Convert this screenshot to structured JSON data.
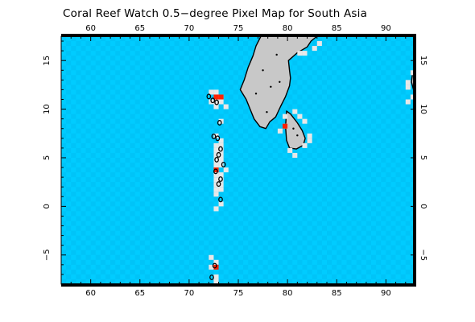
{
  "title": "Coral Reef Watch 0.5−degree Pixel Map for South Asia",
  "map": {
    "lon_range": [
      57.0,
      93.0
    ],
    "lat_range": [
      -8.0,
      17.5
    ],
    "pixel_size_deg": 0.5,
    "lon_ticks": [
      60,
      65,
      70,
      75,
      80,
      85,
      90
    ],
    "lat_ticks": [
      -5,
      0,
      5,
      10,
      15
    ],
    "lon_tick_labels": [
      "60",
      "65",
      "70",
      "75",
      "80",
      "85",
      "90"
    ],
    "lat_tick_labels": [
      "−5",
      "0",
      "5",
      "10",
      "15"
    ],
    "colors": {
      "ocean_a": "#00ccff",
      "ocean_b": "#00c4f8",
      "land": "#c8c8c8",
      "reef_pixel": "#e8e8e8",
      "highlight_pixel": "#ff2200",
      "coastline": "#000000"
    },
    "land_polygons": [
      {
        "name": "Indian Peninsula",
        "coords": [
          [
            77.3,
            17.5
          ],
          [
            76.8,
            16.5
          ],
          [
            76.5,
            15.5
          ],
          [
            76.0,
            14.3
          ],
          [
            75.6,
            13.0
          ],
          [
            75.2,
            12.0
          ],
          [
            75.8,
            11.0
          ],
          [
            76.2,
            10.0
          ],
          [
            76.6,
            9.0
          ],
          [
            77.2,
            8.2
          ],
          [
            77.8,
            8.0
          ],
          [
            78.2,
            8.7
          ],
          [
            78.8,
            9.2
          ],
          [
            79.3,
            10.3
          ],
          [
            79.8,
            11.3
          ],
          [
            80.2,
            12.4
          ],
          [
            80.3,
            13.2
          ],
          [
            80.2,
            14.0
          ],
          [
            80.1,
            15.0
          ],
          [
            81.0,
            15.8
          ],
          [
            82.0,
            16.4
          ],
          [
            82.4,
            17.0
          ],
          [
            83.0,
            17.5
          ]
        ]
      },
      {
        "name": "Sri Lanka",
        "coords": [
          [
            79.9,
            9.8
          ],
          [
            80.3,
            9.5
          ],
          [
            81.0,
            8.6
          ],
          [
            81.5,
            7.8
          ],
          [
            81.8,
            7.0
          ],
          [
            81.6,
            6.3
          ],
          [
            80.9,
            5.9
          ],
          [
            80.2,
            6.0
          ],
          [
            79.9,
            6.8
          ],
          [
            79.8,
            8.2
          ]
        ]
      },
      {
        "name": "Andaman Islands",
        "coords": [
          [
            92.7,
            13.6
          ],
          [
            93.0,
            13.6
          ],
          [
            93.0,
            11.8
          ],
          [
            92.8,
            12.0
          ],
          [
            92.6,
            12.8
          ]
        ]
      }
    ],
    "island_marks": [
      [
        72.0,
        11.3
      ],
      [
        72.4,
        10.9
      ],
      [
        72.8,
        10.7
      ],
      [
        73.1,
        8.6
      ],
      [
        72.5,
        7.2
      ],
      [
        72.9,
        7.0
      ],
      [
        73.2,
        5.9
      ],
      [
        73.0,
        5.3
      ],
      [
        72.8,
        4.8
      ],
      [
        73.5,
        4.3
      ],
      [
        72.7,
        3.6
      ],
      [
        73.2,
        2.8
      ],
      [
        73.0,
        2.3
      ],
      [
        73.2,
        0.7
      ],
      [
        72.3,
        -7.3
      ],
      [
        72.6,
        -6.1
      ]
    ],
    "reef_pixels": [
      [
        72.0,
        12.0
      ],
      [
        72.5,
        12.0
      ],
      [
        73.0,
        11.5
      ],
      [
        72.0,
        11.0
      ],
      [
        72.5,
        11.0
      ],
      [
        73.0,
        11.0
      ],
      [
        73.5,
        10.5
      ],
      [
        72.5,
        10.5
      ],
      [
        73.0,
        9.0
      ],
      [
        72.5,
        7.5
      ],
      [
        73.0,
        7.0
      ],
      [
        72.5,
        6.5
      ],
      [
        73.0,
        6.5
      ],
      [
        72.5,
        6.0
      ],
      [
        73.0,
        6.0
      ],
      [
        72.5,
        5.5
      ],
      [
        73.0,
        5.5
      ],
      [
        72.5,
        5.0
      ],
      [
        73.0,
        5.0
      ],
      [
        72.5,
        4.5
      ],
      [
        73.0,
        4.5
      ],
      [
        73.5,
        4.0
      ],
      [
        72.5,
        4.0
      ],
      [
        72.5,
        3.5
      ],
      [
        73.0,
        3.5
      ],
      [
        72.5,
        3.0
      ],
      [
        73.0,
        3.0
      ],
      [
        72.5,
        2.5
      ],
      [
        73.0,
        2.5
      ],
      [
        72.5,
        2.0
      ],
      [
        73.0,
        2.0
      ],
      [
        72.5,
        1.5
      ],
      [
        73.0,
        0.5
      ],
      [
        72.5,
        0.0
      ],
      [
        72.0,
        -5.0
      ],
      [
        72.5,
        -5.5
      ],
      [
        72.0,
        -6.0
      ],
      [
        72.5,
        -7.0
      ],
      [
        72.5,
        -7.5
      ],
      [
        79.5,
        9.5
      ],
      [
        79.5,
        8.5
      ],
      [
        79.0,
        8.0
      ],
      [
        80.0,
        6.0
      ],
      [
        80.5,
        5.5
      ],
      [
        81.5,
        6.5
      ],
      [
        82.0,
        7.0
      ],
      [
        82.0,
        7.5
      ],
      [
        81.5,
        9.0
      ],
      [
        80.5,
        10.0
      ],
      [
        81.0,
        9.5
      ],
      [
        81.0,
        16.0
      ],
      [
        81.5,
        16.0
      ],
      [
        82.5,
        16.5
      ],
      [
        83.0,
        17.0
      ],
      [
        92.0,
        13.0
      ],
      [
        92.0,
        12.5
      ],
      [
        92.5,
        11.5
      ],
      [
        92.0,
        11.0
      ],
      [
        93.0,
        11.5
      ],
      [
        92.5,
        14.0
      ]
    ],
    "highlight_pixels": [
      [
        72.5,
        11.5
      ],
      [
        73.0,
        11.5
      ],
      [
        72.5,
        4.0
      ],
      [
        79.5,
        8.5
      ],
      [
        72.5,
        -6.0
      ]
    ]
  }
}
